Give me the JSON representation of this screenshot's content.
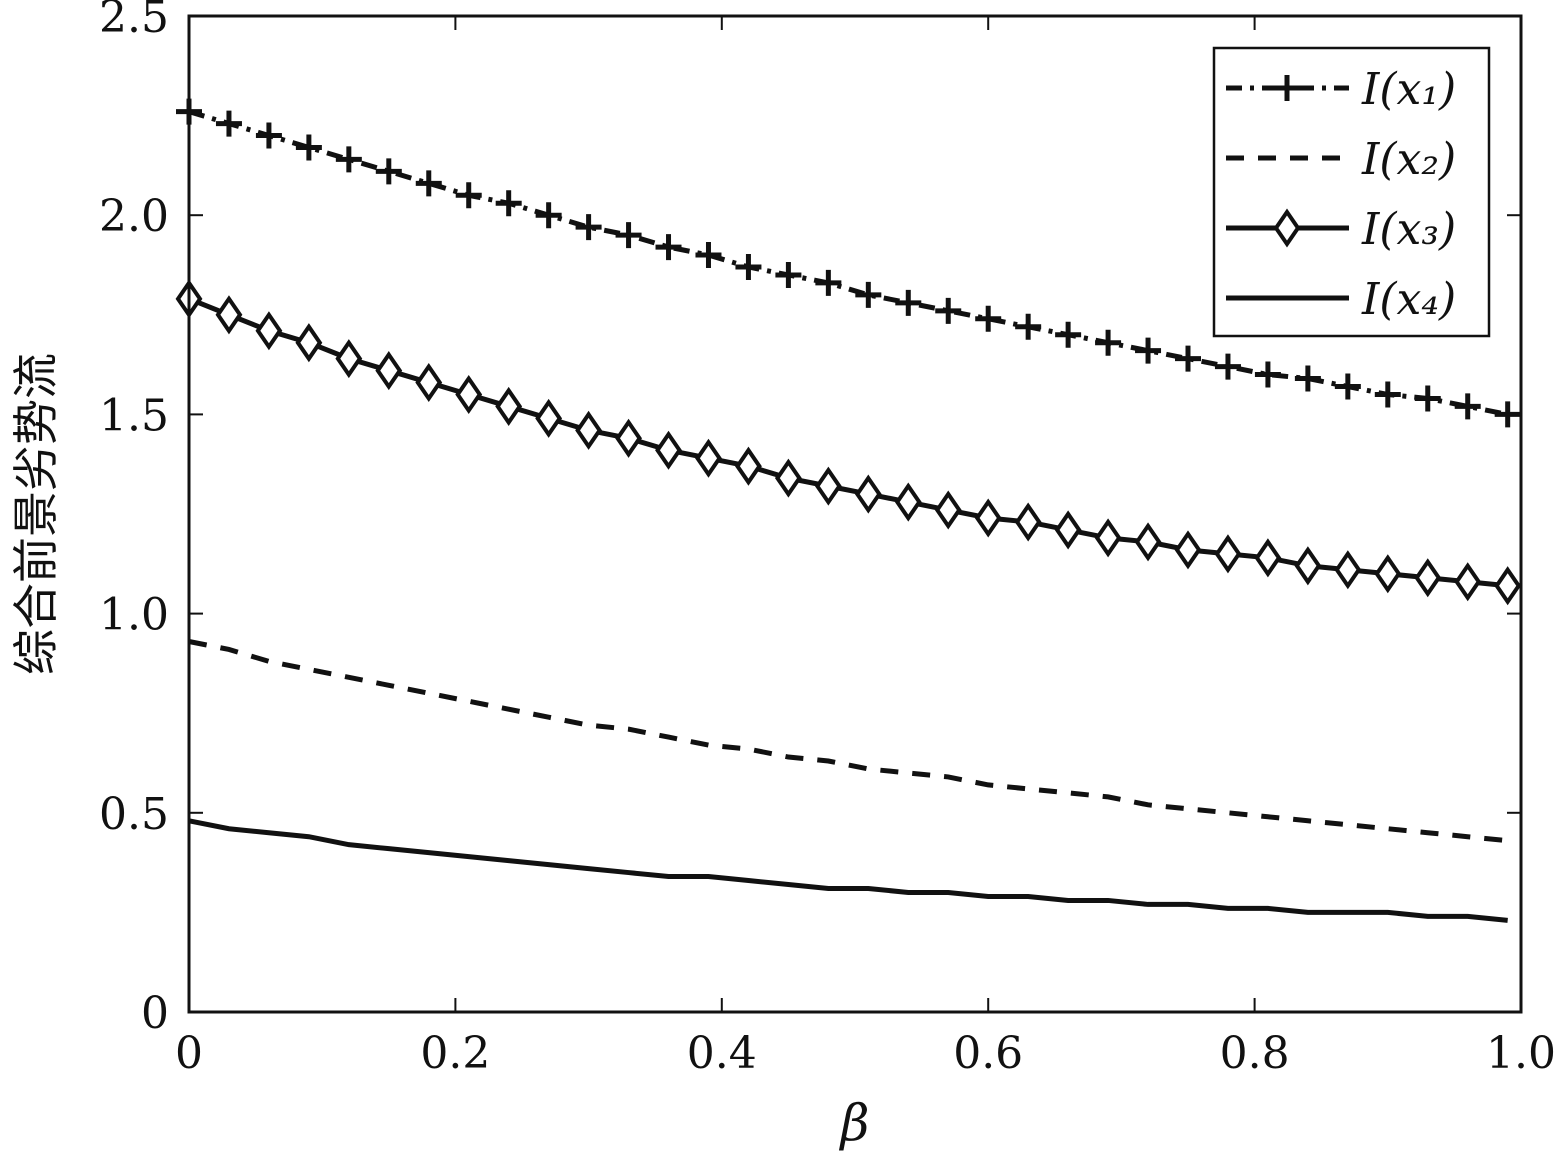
{
  "chart_data": {
    "type": "line",
    "xlabel": "β",
    "ylabel": "综合前景劣势流",
    "xlim": [
      0,
      1.0
    ],
    "ylim": [
      0,
      2.5
    ],
    "x_ticks": [
      "0",
      "0.2",
      "0.4",
      "0.6",
      "0.8",
      "1.0"
    ],
    "y_ticks": [
      "0",
      "0.5",
      "1.0",
      "1.5",
      "2.0",
      "2.5"
    ],
    "legend_position": "top-right",
    "grid": false,
    "x": [
      0,
      0.03,
      0.06,
      0.09,
      0.12,
      0.15,
      0.18,
      0.21,
      0.24,
      0.27,
      0.3,
      0.33,
      0.36,
      0.39,
      0.42,
      0.45,
      0.48,
      0.51,
      0.54,
      0.57,
      0.6,
      0.63,
      0.66,
      0.69,
      0.72,
      0.75,
      0.78,
      0.81,
      0.84,
      0.87,
      0.9,
      0.93,
      0.96,
      0.99
    ],
    "series": [
      {
        "name": "I(x₁)",
        "style": "dashdot",
        "marker": "plus",
        "values": [
          2.26,
          2.23,
          2.2,
          2.17,
          2.14,
          2.11,
          2.08,
          2.05,
          2.03,
          2.0,
          1.97,
          1.95,
          1.92,
          1.9,
          1.87,
          1.85,
          1.83,
          1.8,
          1.78,
          1.76,
          1.74,
          1.72,
          1.7,
          1.68,
          1.66,
          1.64,
          1.62,
          1.6,
          1.59,
          1.57,
          1.55,
          1.54,
          1.52,
          1.5
        ]
      },
      {
        "name": "I(x₂)",
        "style": "dashed",
        "marker": "none",
        "values": [
          0.93,
          0.91,
          0.88,
          0.86,
          0.84,
          0.82,
          0.8,
          0.78,
          0.76,
          0.74,
          0.72,
          0.71,
          0.69,
          0.67,
          0.66,
          0.64,
          0.63,
          0.61,
          0.6,
          0.59,
          0.57,
          0.56,
          0.55,
          0.54,
          0.52,
          0.51,
          0.5,
          0.49,
          0.48,
          0.47,
          0.46,
          0.45,
          0.44,
          0.43
        ]
      },
      {
        "name": "I(x₃)",
        "style": "solid",
        "marker": "diamond",
        "values": [
          1.79,
          1.75,
          1.71,
          1.68,
          1.64,
          1.61,
          1.58,
          1.55,
          1.52,
          1.49,
          1.46,
          1.44,
          1.41,
          1.39,
          1.37,
          1.34,
          1.32,
          1.3,
          1.28,
          1.26,
          1.24,
          1.23,
          1.21,
          1.19,
          1.18,
          1.16,
          1.15,
          1.14,
          1.12,
          1.11,
          1.1,
          1.09,
          1.08,
          1.07
        ]
      },
      {
        "name": "I(x₄)",
        "style": "solid",
        "marker": "none",
        "values": [
          0.48,
          0.46,
          0.45,
          0.44,
          0.42,
          0.41,
          0.4,
          0.39,
          0.38,
          0.37,
          0.36,
          0.35,
          0.34,
          0.34,
          0.33,
          0.32,
          0.31,
          0.31,
          0.3,
          0.3,
          0.29,
          0.29,
          0.28,
          0.28,
          0.27,
          0.27,
          0.26,
          0.26,
          0.25,
          0.25,
          0.25,
          0.24,
          0.24,
          0.23
        ]
      }
    ]
  }
}
